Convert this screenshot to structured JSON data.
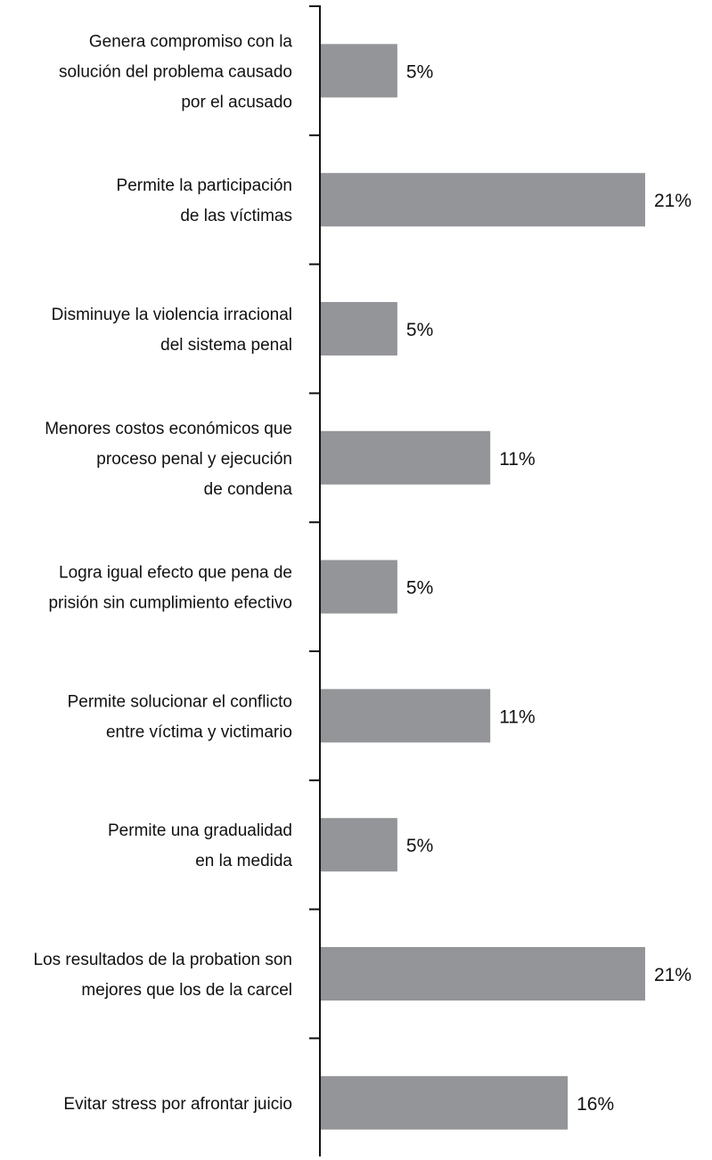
{
  "chart_data": {
    "type": "bar",
    "orientation": "horizontal",
    "bar_color": "#939598",
    "axis_color": "#111111",
    "xlim": [
      0,
      21
    ],
    "grid": false,
    "legend": "none",
    "categories": [
      [
        "Genera compromiso con la",
        "solución del problema causado",
        "por el acusado"
      ],
      [
        "Permite la participación",
        "de las víctimas"
      ],
      [
        "Disminuye la violencia irracional",
        "del sistema penal"
      ],
      [
        "Menores costos económicos que",
        "proceso penal y ejecución",
        "de condena"
      ],
      [
        "Logra igual efecto que pena de",
        "prisión sin cumplimiento efectivo"
      ],
      [
        "Permite solucionar el conflicto",
        "entre víctima y victimario"
      ],
      [
        "Permite una gradualidad",
        "en la medida"
      ],
      [
        "Los resultados de la probation son",
        "mejores que los de la carcel"
      ],
      [
        "Evitar stress por afrontar juicio"
      ]
    ],
    "values": [
      5,
      21,
      5,
      11,
      5,
      11,
      5,
      21,
      16
    ],
    "value_labels": [
      "5%",
      "21%",
      "5%",
      "11%",
      "5%",
      "11%",
      "5%",
      "21%",
      "16%"
    ]
  }
}
